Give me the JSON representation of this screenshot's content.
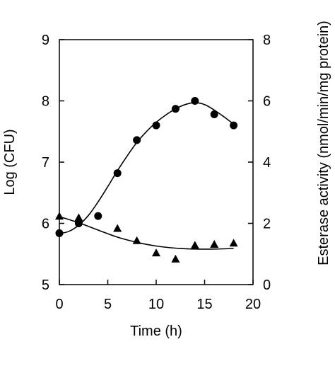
{
  "chart_data": {
    "type": "scatter",
    "xlabel": "Time (h)",
    "ylabel_left": "Log (CFU)",
    "ylabel_right": "Esterase activity (nmol/min/mg protein)",
    "xlim": [
      0,
      20
    ],
    "ylim_left": [
      5,
      9
    ],
    "ylim_right": [
      0,
      8
    ],
    "x_ticks": [
      0,
      5,
      10,
      15,
      20
    ],
    "y_ticks_left": [
      5,
      6,
      7,
      8,
      9
    ],
    "y_ticks_right": [
      0,
      2,
      4,
      6,
      8
    ],
    "grid": false,
    "legend": "none",
    "series": [
      {
        "axis": "left",
        "marker": "circle",
        "points": [
          {
            "x": 0,
            "y": 5.84
          },
          {
            "x": 2,
            "y": 6.0
          },
          {
            "x": 4,
            "y": 6.12
          },
          {
            "x": 6,
            "y": 6.82
          },
          {
            "x": 8,
            "y": 7.36
          },
          {
            "x": 10,
            "y": 7.6
          },
          {
            "x": 12,
            "y": 7.87
          },
          {
            "x": 14,
            "y": 8.0
          },
          {
            "x": 16,
            "y": 7.78
          },
          {
            "x": 18,
            "y": 7.6
          }
        ],
        "fit": [
          {
            "x": 0,
            "y": 5.83
          },
          {
            "x": 1,
            "y": 5.87
          },
          {
            "x": 2,
            "y": 5.97
          },
          {
            "x": 3,
            "y": 6.13
          },
          {
            "x": 4,
            "y": 6.35
          },
          {
            "x": 5,
            "y": 6.6
          },
          {
            "x": 6,
            "y": 6.86
          },
          {
            "x": 7,
            "y": 7.1
          },
          {
            "x": 8,
            "y": 7.32
          },
          {
            "x": 9,
            "y": 7.5
          },
          {
            "x": 10,
            "y": 7.65
          },
          {
            "x": 11,
            "y": 7.77
          },
          {
            "x": 12,
            "y": 7.87
          },
          {
            "x": 13,
            "y": 7.94
          },
          {
            "x": 14,
            "y": 7.97
          },
          {
            "x": 15,
            "y": 7.94
          },
          {
            "x": 16,
            "y": 7.85
          },
          {
            "x": 17,
            "y": 7.74
          },
          {
            "x": 18,
            "y": 7.62
          }
        ]
      },
      {
        "axis": "right",
        "marker": "triangle",
        "points": [
          {
            "x": 0,
            "y": 2.25
          },
          {
            "x": 2,
            "y": 2.2
          },
          {
            "x": 6,
            "y": 1.85
          },
          {
            "x": 8,
            "y": 1.45
          },
          {
            "x": 10,
            "y": 1.05
          },
          {
            "x": 12,
            "y": 0.85
          },
          {
            "x": 14,
            "y": 1.3
          },
          {
            "x": 16,
            "y": 1.33
          },
          {
            "x": 18,
            "y": 1.37
          }
        ],
        "fit": [
          {
            "x": 0,
            "y": 2.22
          },
          {
            "x": 2,
            "y": 2.02
          },
          {
            "x": 4,
            "y": 1.78
          },
          {
            "x": 6,
            "y": 1.55
          },
          {
            "x": 8,
            "y": 1.38
          },
          {
            "x": 10,
            "y": 1.26
          },
          {
            "x": 12,
            "y": 1.19
          },
          {
            "x": 14,
            "y": 1.16
          },
          {
            "x": 16,
            "y": 1.16
          },
          {
            "x": 18,
            "y": 1.18
          }
        ]
      }
    ]
  }
}
